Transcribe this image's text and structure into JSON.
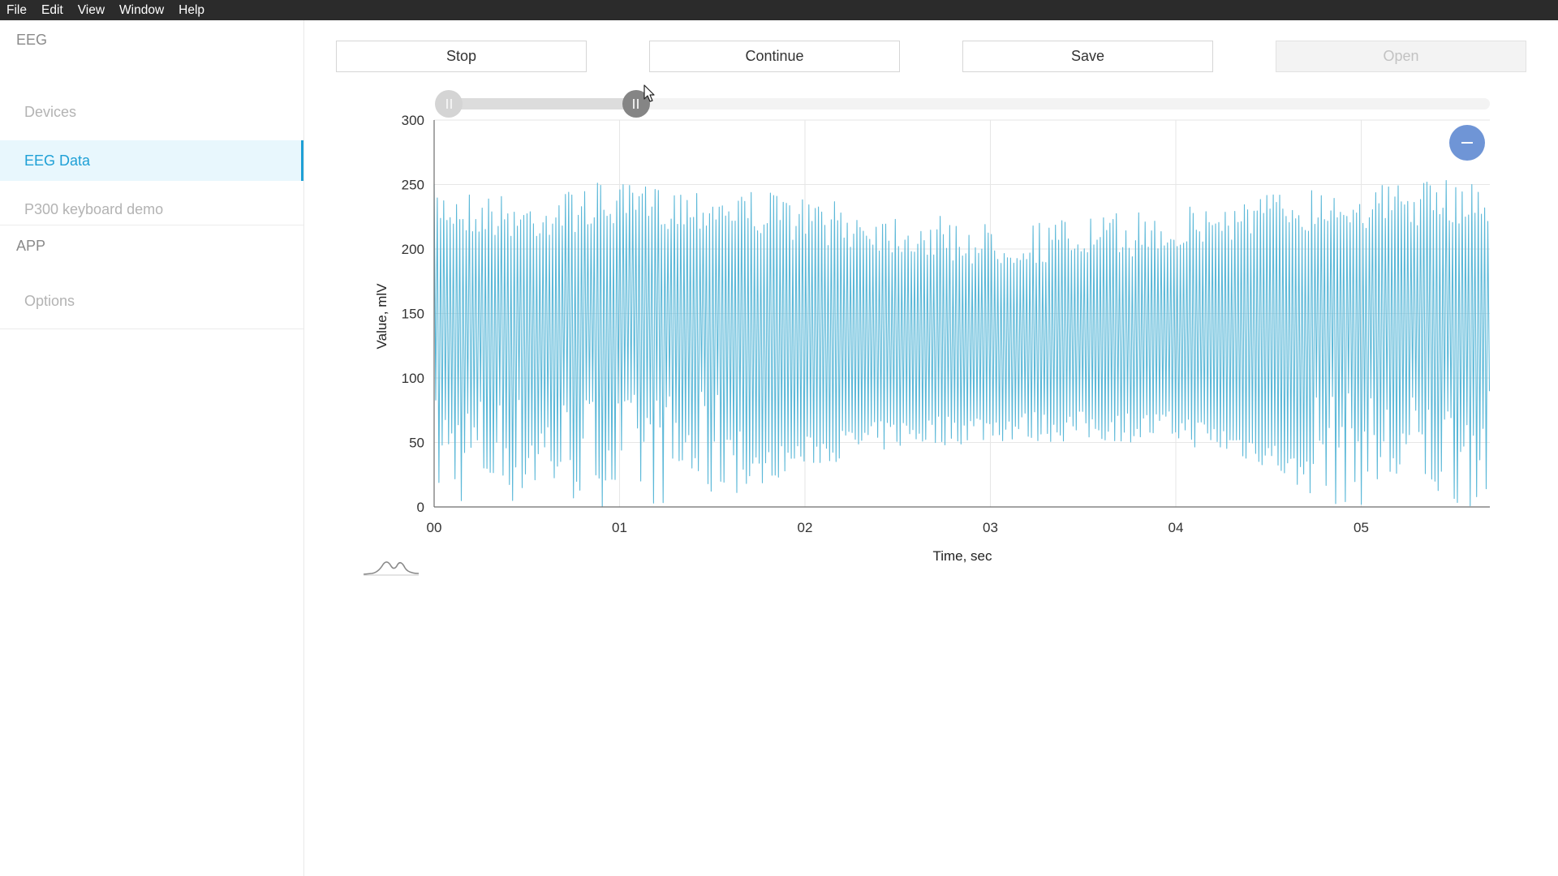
{
  "menubar": {
    "items": [
      "File",
      "Edit",
      "View",
      "Window",
      "Help"
    ]
  },
  "sidebar": {
    "sections": [
      {
        "title": "EEG",
        "items": [
          "Devices",
          "EEG Data",
          "P300 keyboard demo"
        ]
      },
      {
        "title": "APP",
        "items": [
          "Options"
        ]
      }
    ],
    "active_item": "EEG Data"
  },
  "toolbar": {
    "stop_label": "Stop",
    "continue_label": "Continue",
    "save_label": "Save",
    "open_label": "Open",
    "open_disabled": true
  },
  "range_slider": {
    "min_fraction": 0.0,
    "max_fraction": 0.19
  },
  "colors": {
    "accent": "#1ea0d6",
    "series": "#5bb8d8",
    "zoom_button": "#6f95d6",
    "menubar": "#2b2b2b"
  },
  "icons": {
    "zoom_button": "minus-icon",
    "legend": "waveform-icon"
  },
  "chart_data": {
    "type": "line",
    "xlabel": "Time, sec",
    "ylabel": "Value, mlV",
    "xlim": [
      0,
      5.7
    ],
    "ylim": [
      0,
      300
    ],
    "xticks": [
      "00",
      "01",
      "02",
      "03",
      "04",
      "05"
    ],
    "yticks": [
      0,
      50,
      100,
      150,
      200,
      250,
      300
    ],
    "grid": true,
    "series": [
      {
        "envelope": {
          "x": [
            0.0,
            0.5,
            0.9,
            1.0,
            1.5,
            1.8,
            2.0,
            2.5,
            3.0,
            3.5,
            4.0,
            4.5,
            4.8,
            5.0,
            5.5,
            5.7
          ],
          "upper": [
            250,
            240,
            252,
            250,
            250,
            245,
            240,
            230,
            220,
            225,
            232,
            245,
            250,
            250,
            254,
            254
          ],
          "lower": [
            0,
            0,
            0,
            0,
            0,
            20,
            30,
            45,
            50,
            50,
            50,
            30,
            0,
            0,
            0,
            0
          ]
        },
        "oscillation_cycles": 330
      }
    ]
  }
}
